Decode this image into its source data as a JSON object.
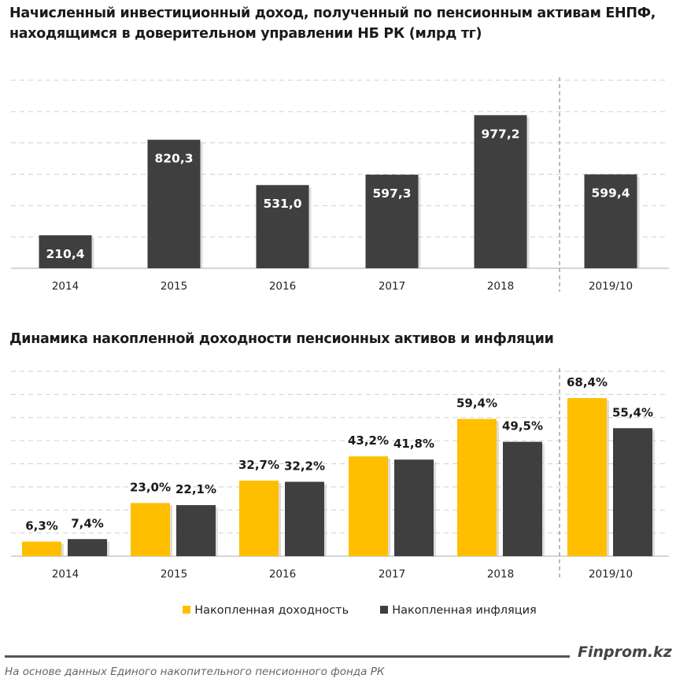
{
  "colors": {
    "yield": "#FFBF00",
    "inflation": "#3F3F3F",
    "grid": "#d0d0d0"
  },
  "chart_data": [
    {
      "type": "bar",
      "title": "Начисленный инвестиционный доход, полученный по пенсионным активам ЕНПФ, находящимся в доверительном управлении НБ РК (млрд тг)",
      "categories": [
        "2014",
        "2015",
        "2016",
        "2017",
        "2018",
        "2019/10"
      ],
      "values": [
        210.4,
        820.3,
        531.0,
        597.3,
        977.2,
        599.4
      ],
      "labels": [
        "210,4",
        "820,3",
        "531,0",
        "597,3",
        "977,2",
        "599,4"
      ],
      "ylim": [
        0,
        1200
      ],
      "grid": true
    },
    {
      "type": "bar",
      "title": "Динамика накопленной доходности пенсионных активов и инфляции",
      "categories": [
        "2014",
        "2015",
        "2016",
        "2017",
        "2018",
        "2019/10"
      ],
      "series": [
        {
          "name": "Накопленная доходность",
          "values": [
            6.3,
            23.0,
            32.7,
            43.2,
            59.4,
            68.4
          ],
          "labels": [
            "6,3%",
            "23,0%",
            "32,7%",
            "43,2%",
            "59,4%",
            "68,4%"
          ]
        },
        {
          "name": "Накопленная инфляция",
          "values": [
            7.4,
            22.1,
            32.2,
            41.8,
            49.5,
            55.4
          ],
          "labels": [
            "7,4%",
            "22,1%",
            "32,2%",
            "41,8%",
            "49,5%",
            "55,4%"
          ]
        }
      ],
      "ylim": [
        0,
        80
      ],
      "grid": true,
      "legend": "bottom"
    }
  ],
  "footer": {
    "brand": "Finprom.kz",
    "source": "На основе данных Единого накопительного пенсионного фонда РК"
  }
}
